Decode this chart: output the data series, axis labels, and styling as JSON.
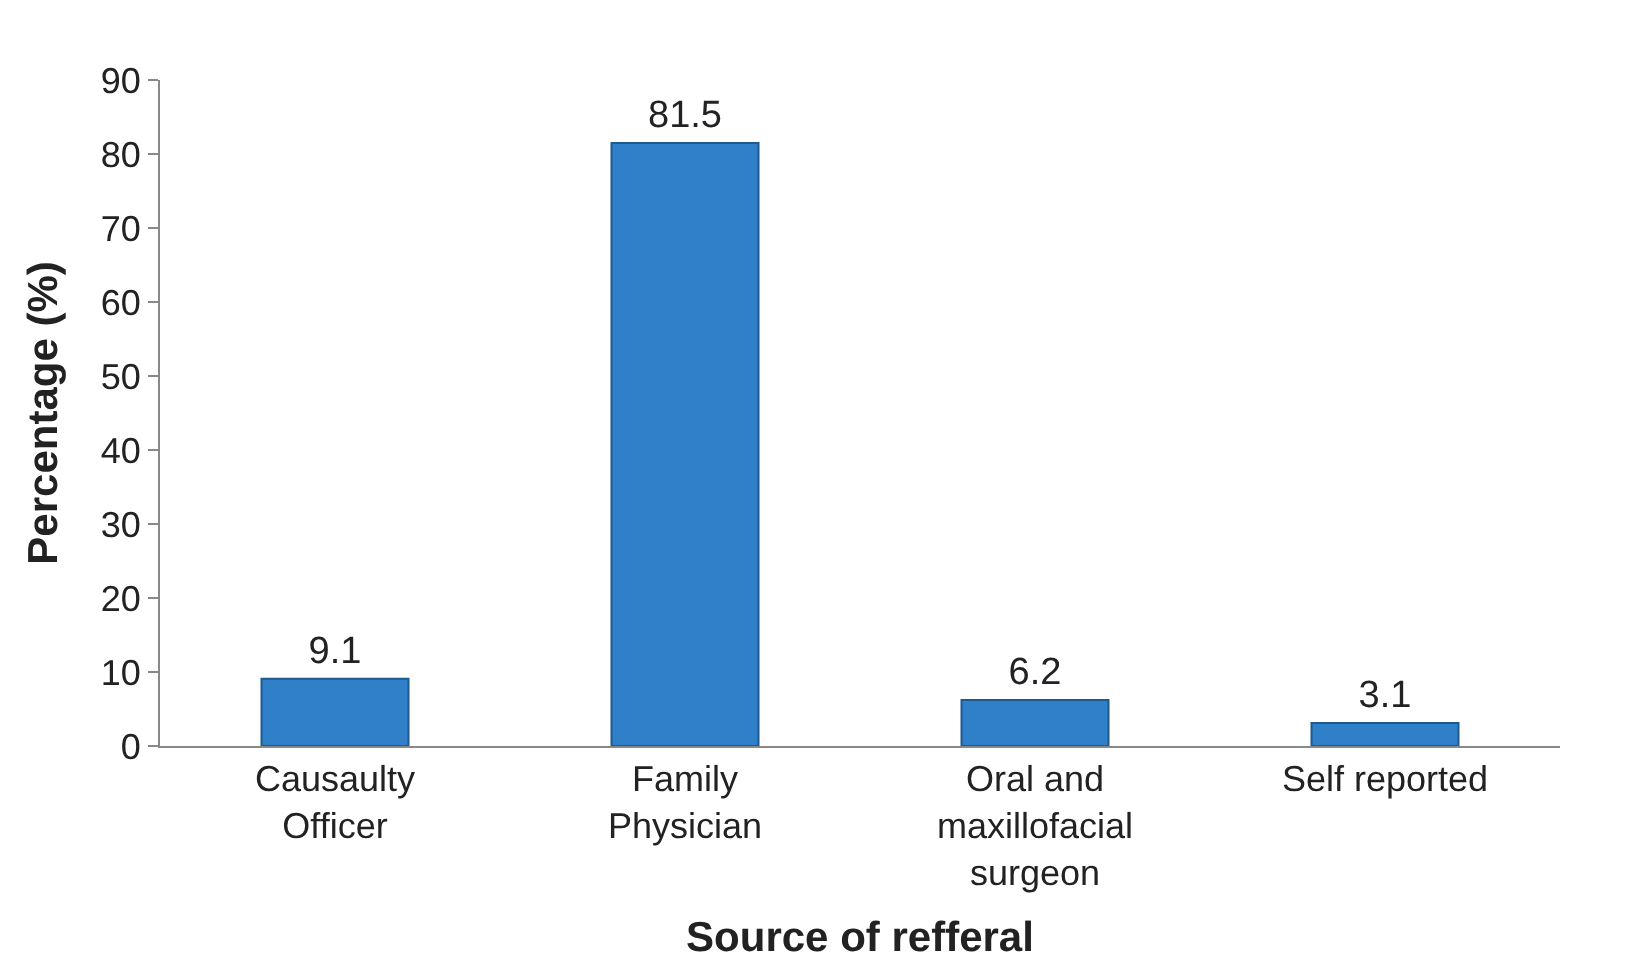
{
  "chart_data": {
    "type": "bar",
    "xlabel": "Source of refferal",
    "ylabel": "Percentage (%)",
    "categories": [
      "Causaulty Officer",
      "Family Physician",
      "Oral and maxillofacial surgeon",
      "Self reported"
    ],
    "values": [
      9.1,
      81.5,
      6.2,
      3.1
    ],
    "color": "#2f7fc9",
    "ylim": [
      0,
      90
    ],
    "yticks": [
      0,
      10,
      20,
      30,
      40,
      50,
      60,
      70,
      80,
      90
    ],
    "data_labels": true
  }
}
